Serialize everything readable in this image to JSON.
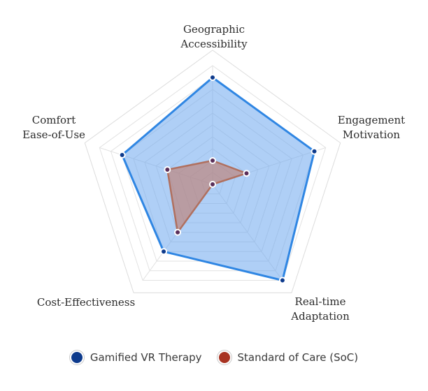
{
  "chart_data": {
    "type": "radar",
    "axes": [
      "Geographic Accessibility",
      "Engagement Motivation",
      "Real-time Adaptation",
      "Cost-Effectiveness",
      "Comfort Ease-of-Use"
    ],
    "axis_label_lines": [
      [
        "Geographic",
        "Accessibility"
      ],
      [
        "Engagement",
        "Motivation"
      ],
      [
        "Real-time",
        "Adaptation"
      ],
      [
        "Cost-Effectiveness"
      ],
      [
        "Comfort",
        "Ease-of-Use"
      ]
    ],
    "range": [
      0,
      10
    ],
    "grid_levels": 10,
    "series": [
      {
        "name": "Gamified VR Therapy",
        "values": [
          9,
          9,
          10,
          7,
          8
        ],
        "line_color": "#2f86e3",
        "fill_color": "#6ea8ee",
        "marker_color": "#0d3a8c"
      },
      {
        "name": "Standard of Care (SoC)",
        "values": [
          2,
          3,
          0,
          5,
          4
        ],
        "line_color": "#b0705f",
        "fill_color": "#c07a6a",
        "marker_color": "#5a2f5a"
      }
    ]
  },
  "legend": {
    "items": [
      {
        "label": "Gamified VR Therapy",
        "color": "#0d3a8c"
      },
      {
        "label": "Standard of Care (SoC)",
        "color": "#a83322"
      }
    ]
  }
}
